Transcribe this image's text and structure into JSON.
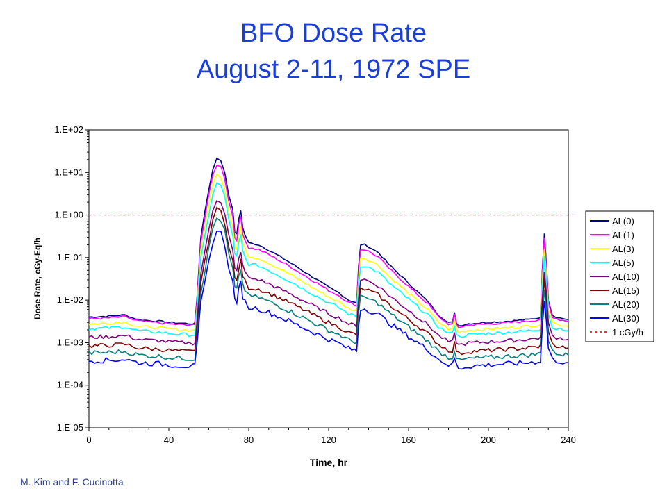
{
  "slide": {
    "title_line1": "BFO Dose Rate",
    "title_line2": "August 2-11, 1972 SPE",
    "credit": "M. Kim and F. Cucinotta"
  },
  "chart_data": {
    "type": "line",
    "title": "",
    "xlabel": "Time, hr",
    "ylabel": "Dose Rate, cGy-Eq/h",
    "xlim": [
      0,
      240
    ],
    "ylim": [
      1e-05,
      100
    ],
    "yscale": "log",
    "x_ticks": [
      "0",
      "40",
      "80",
      "120",
      "160",
      "200",
      "240"
    ],
    "y_ticks": [
      "1.E-05",
      "1.E-04",
      "1.E-03",
      "1.E-02",
      "1.E-01",
      "1.E+00",
      "1.E+01",
      "1.E+02"
    ],
    "grid": false,
    "legend_position": "right",
    "reference_line": {
      "name": "1 cGy/h",
      "value": 1,
      "color": "#c00000",
      "style": "dotted"
    },
    "base_series": {
      "x": [
        0,
        10,
        18,
        20,
        22,
        25,
        30,
        35,
        40,
        45,
        50,
        52,
        53,
        54,
        56,
        58,
        60,
        62,
        64,
        66,
        68,
        70,
        72,
        73,
        74,
        75,
        76,
        77,
        78,
        80,
        85,
        90,
        100,
        110,
        120,
        125,
        130,
        133,
        134,
        135,
        136,
        138,
        140,
        145,
        150,
        160,
        170,
        175,
        180,
        182,
        183,
        184,
        185,
        190,
        200,
        210,
        220,
        225,
        226,
        227,
        228,
        229,
        230,
        232,
        234,
        236,
        240
      ],
      "values": [
        0.004,
        0.0042,
        0.0045,
        0.0042,
        0.0038,
        0.0035,
        0.0033,
        0.0032,
        0.003,
        0.0029,
        0.0028,
        0.0028,
        0.0028,
        0.01,
        0.3,
        1.2,
        4,
        12,
        21,
        19,
        10,
        3,
        1.3,
        0.4,
        0.35,
        0.8,
        1.3,
        0.5,
        0.35,
        0.22,
        0.2,
        0.15,
        0.08,
        0.04,
        0.02,
        0.015,
        0.01,
        0.009,
        0.0085,
        0.06,
        0.2,
        0.2,
        0.18,
        0.13,
        0.07,
        0.025,
        0.009,
        0.0045,
        0.003,
        0.003,
        0.005,
        0.003,
        0.0025,
        0.0028,
        0.003,
        0.0032,
        0.0035,
        0.0038,
        0.004,
        0.05,
        0.38,
        0.08,
        0.01,
        0.0045,
        0.004,
        0.0038,
        0.0035
      ]
    },
    "series": [
      {
        "name": "AL(0)",
        "color": "#000080",
        "factor": 1,
        "low_factor": 1
      },
      {
        "name": "AL(1)",
        "color": "#ff00ff",
        "factor": 0.72,
        "low_factor": 0.92
      },
      {
        "name": "AL(3)",
        "color": "#ffff00",
        "factor": 0.42,
        "low_factor": 0.7
      },
      {
        "name": "AL(5)",
        "color": "#00ffff",
        "factor": 0.26,
        "low_factor": 0.55
      },
      {
        "name": "AL(10)",
        "color": "#800080",
        "factor": 0.11,
        "low_factor": 0.35
      },
      {
        "name": "AL(15)",
        "color": "#800000",
        "factor": 0.065,
        "low_factor": 0.22
      },
      {
        "name": "AL(20)",
        "color": "#008080",
        "factor": 0.04,
        "low_factor": 0.15
      },
      {
        "name": "AL(30)",
        "color": "#0000ff",
        "factor": 0.02,
        "low_factor": 0.1
      }
    ]
  }
}
